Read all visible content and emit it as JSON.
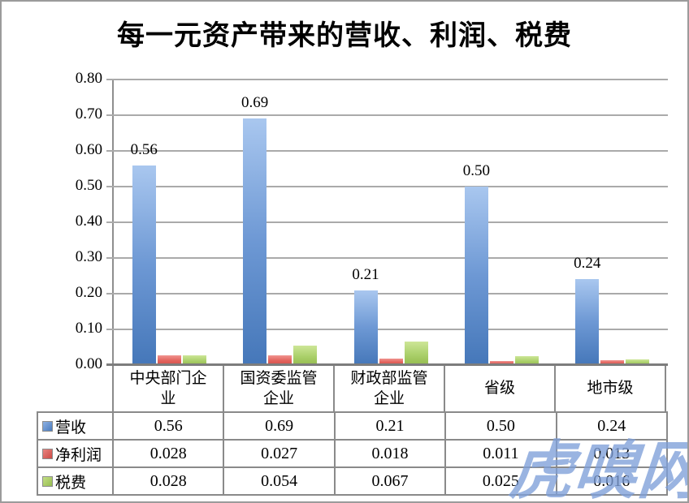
{
  "watermark": {
    "text": "虎嗅网",
    "color": "#7E9FD8"
  },
  "colors": {
    "revenue_blue": "#4F81BD",
    "net_profit_red": "#C0504D",
    "tax_green": "#9BBB59",
    "gridline_gray": "#AAAAAA",
    "table_border_gray": "#8A8A8A"
  },
  "chart_data": {
    "type": "bar",
    "title": "每一元资产带来的营收、利润、税费",
    "categories": [
      "中央部门企业",
      "国资委监管企业",
      "财政部监管企业",
      "省级",
      "地市级"
    ],
    "series": [
      {
        "key": "revenue",
        "name": "营收",
        "color": "#4F81BD",
        "values": [
          0.56,
          0.69,
          0.21,
          0.5,
          0.24
        ],
        "display": [
          "0.56",
          "0.69",
          "0.21",
          "0.50",
          "0.24"
        ]
      },
      {
        "key": "net-profit",
        "name": "净利润",
        "color": "#C0504D",
        "values": [
          0.028,
          0.027,
          0.018,
          0.011,
          0.013
        ],
        "display": [
          "0.028",
          "0.027",
          "0.018",
          "0.011",
          "0.013"
        ]
      },
      {
        "key": "tax",
        "name": "税费",
        "color": "#9BBB59",
        "values": [
          0.028,
          0.054,
          0.067,
          0.025,
          0.016
        ],
        "display": [
          "0.028",
          "0.054",
          "0.067",
          "0.025",
          "0.016"
        ]
      }
    ],
    "xlabel": "",
    "ylabel": "",
    "ylim": [
      0,
      0.8
    ],
    "ytick_step": 0.1,
    "ytick_labels": [
      "0.00",
      "0.10",
      "0.20",
      "0.30",
      "0.40",
      "0.50",
      "0.60",
      "0.70",
      "0.80"
    ],
    "grid": true,
    "bar_labels_on_series": "营收",
    "legend_position": "table-left"
  }
}
